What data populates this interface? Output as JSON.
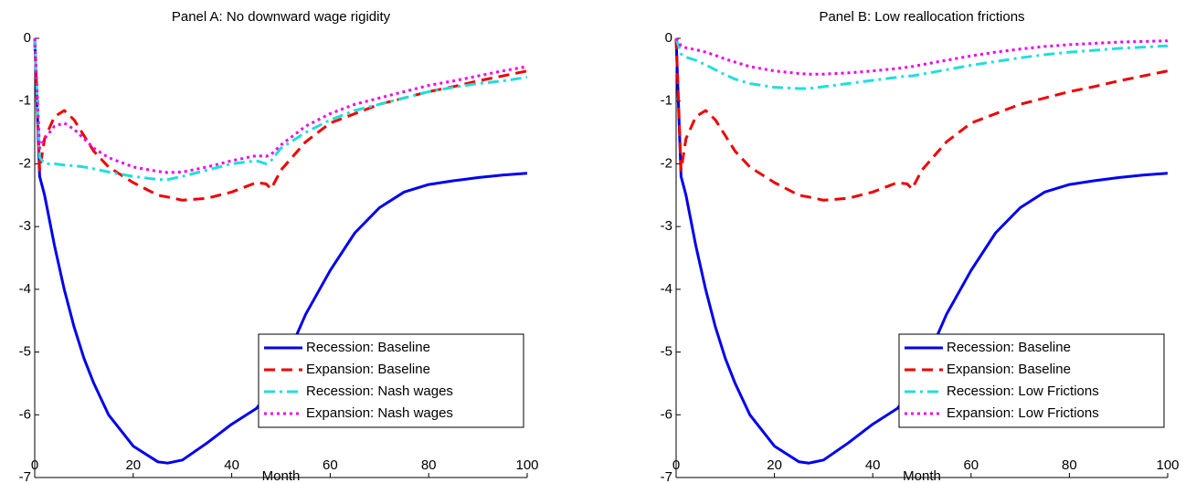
{
  "chart_data": [
    {
      "type": "line",
      "title": "Panel A: No downward wage rigidity",
      "xlabel": "Month",
      "x": [
        0,
        1,
        2,
        4,
        6,
        8,
        10,
        12,
        15,
        20,
        25,
        27,
        30,
        35,
        40,
        45,
        47,
        48,
        50,
        55,
        60,
        65,
        70,
        75,
        80,
        85,
        90,
        95,
        100
      ],
      "xlim": [
        0,
        100
      ],
      "xticks": [
        0,
        20,
        40,
        60,
        80,
        100
      ],
      "ylim": [
        -7,
        0
      ],
      "yticks": [
        0,
        -1,
        -2,
        -3,
        -4,
        -5,
        -6,
        -7
      ],
      "legend": "lower right",
      "series": [
        {
          "name": "Recession: Baseline",
          "color": "#0000ee",
          "style": "solid",
          "values": [
            0,
            -2.2,
            -2.5,
            -3.3,
            -4.0,
            -4.6,
            -5.1,
            -5.5,
            -6.0,
            -6.5,
            -6.75,
            -6.77,
            -6.72,
            -6.45,
            -6.15,
            -5.9,
            -5.7,
            -5.6,
            -5.3,
            -4.4,
            -3.7,
            -3.1,
            -2.7,
            -2.45,
            -2.33,
            -2.27,
            -2.22,
            -2.18,
            -2.15
          ]
        },
        {
          "name": "Expansion: Baseline",
          "color": "#ee0000",
          "style": "dashed",
          "values": [
            0,
            -2.1,
            -1.6,
            -1.25,
            -1.15,
            -1.3,
            -1.55,
            -1.8,
            -2.05,
            -2.3,
            -2.5,
            -2.53,
            -2.58,
            -2.55,
            -2.45,
            -2.3,
            -2.32,
            -2.4,
            -2.1,
            -1.65,
            -1.35,
            -1.2,
            -1.05,
            -0.95,
            -0.85,
            -0.77,
            -0.68,
            -0.6,
            -0.52
          ]
        },
        {
          "name": "Recession: Nash wages",
          "color": "#22dddd",
          "style": "dashdot",
          "values": [
            0,
            -1.9,
            -2.0,
            -2.0,
            -2.02,
            -2.03,
            -2.05,
            -2.08,
            -2.13,
            -2.2,
            -2.25,
            -2.25,
            -2.2,
            -2.1,
            -2.0,
            -1.95,
            -2.0,
            -1.95,
            -1.75,
            -1.5,
            -1.3,
            -1.15,
            -1.05,
            -0.95,
            -0.85,
            -0.78,
            -0.72,
            -0.68,
            -0.62
          ]
        },
        {
          "name": "Expansion: Nash wages",
          "color": "#ee00ee",
          "style": "dotted",
          "values": [
            0,
            -1.75,
            -1.6,
            -1.4,
            -1.35,
            -1.45,
            -1.6,
            -1.75,
            -1.9,
            -2.05,
            -2.12,
            -2.14,
            -2.13,
            -2.05,
            -1.95,
            -1.87,
            -1.88,
            -1.85,
            -1.7,
            -1.4,
            -1.2,
            -1.05,
            -0.95,
            -0.85,
            -0.75,
            -0.68,
            -0.6,
            -0.52,
            -0.45
          ]
        }
      ]
    },
    {
      "type": "line",
      "title": "Panel B: Low reallocation frictions",
      "xlabel": "Month",
      "x": [
        0,
        1,
        2,
        4,
        6,
        8,
        10,
        12,
        15,
        20,
        25,
        27,
        30,
        35,
        40,
        45,
        47,
        48,
        50,
        55,
        60,
        65,
        70,
        75,
        80,
        85,
        90,
        95,
        100
      ],
      "xlim": [
        0,
        100
      ],
      "xticks": [
        0,
        20,
        40,
        60,
        80,
        100
      ],
      "ylim": [
        -7,
        0
      ],
      "yticks": [
        0,
        -1,
        -2,
        -3,
        -4,
        -5,
        -6,
        -7
      ],
      "legend": "lower right",
      "series": [
        {
          "name": "Recession: Baseline",
          "color": "#0000ee",
          "style": "solid",
          "values": [
            0,
            -2.2,
            -2.5,
            -3.3,
            -4.0,
            -4.6,
            -5.1,
            -5.5,
            -6.0,
            -6.5,
            -6.75,
            -6.77,
            -6.72,
            -6.45,
            -6.15,
            -5.9,
            -5.7,
            -5.6,
            -5.3,
            -4.4,
            -3.7,
            -3.1,
            -2.7,
            -2.45,
            -2.33,
            -2.27,
            -2.22,
            -2.18,
            -2.15
          ]
        },
        {
          "name": "Expansion: Baseline",
          "color": "#ee0000",
          "style": "dashed",
          "values": [
            0,
            -2.1,
            -1.6,
            -1.25,
            -1.15,
            -1.3,
            -1.55,
            -1.8,
            -2.05,
            -2.3,
            -2.5,
            -2.53,
            -2.58,
            -2.55,
            -2.45,
            -2.3,
            -2.32,
            -2.4,
            -2.1,
            -1.65,
            -1.35,
            -1.2,
            -1.05,
            -0.95,
            -0.85,
            -0.77,
            -0.68,
            -0.6,
            -0.52
          ]
        },
        {
          "name": "Recession: Low Frictions",
          "color": "#22dddd",
          "style": "dashdot",
          "values": [
            0,
            -0.25,
            -0.3,
            -0.35,
            -0.42,
            -0.5,
            -0.58,
            -0.65,
            -0.72,
            -0.78,
            -0.8,
            -0.8,
            -0.77,
            -0.72,
            -0.67,
            -0.62,
            -0.6,
            -0.6,
            -0.57,
            -0.5,
            -0.43,
            -0.37,
            -0.31,
            -0.26,
            -0.22,
            -0.19,
            -0.16,
            -0.14,
            -0.12
          ]
        },
        {
          "name": "Expansion: Low Frictions",
          "color": "#ee00ee",
          "style": "dotted",
          "values": [
            0,
            -0.12,
            -0.15,
            -0.18,
            -0.22,
            -0.27,
            -0.33,
            -0.38,
            -0.45,
            -0.52,
            -0.56,
            -0.57,
            -0.57,
            -0.55,
            -0.52,
            -0.48,
            -0.46,
            -0.45,
            -0.42,
            -0.35,
            -0.28,
            -0.22,
            -0.17,
            -0.13,
            -0.1,
            -0.08,
            -0.06,
            -0.05,
            -0.04
          ]
        }
      ]
    }
  ]
}
